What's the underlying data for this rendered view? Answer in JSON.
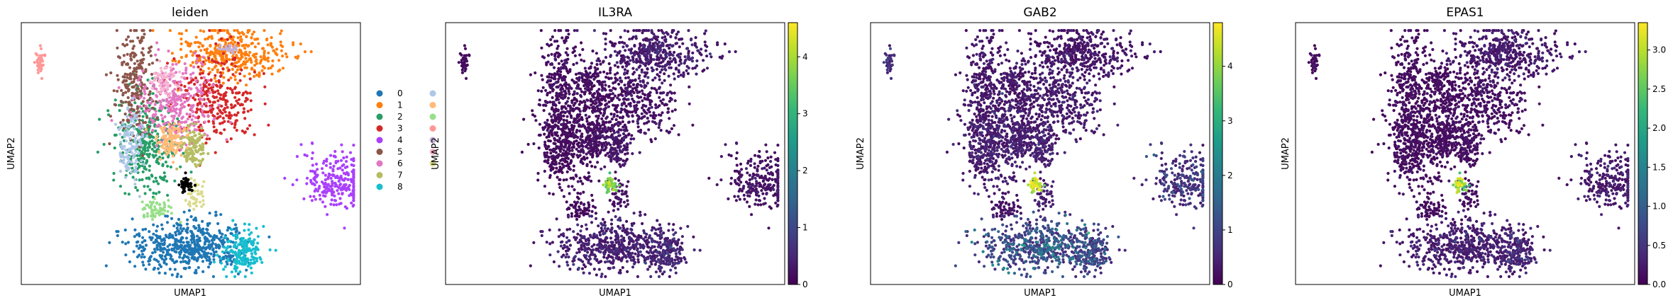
{
  "figure": {
    "xlabel": "UMAP1",
    "ylabel": "UMAP2"
  },
  "chart_data": [
    {
      "type": "scatter",
      "title": "leiden",
      "xlabel": "UMAP1",
      "ylabel": "UMAP2",
      "legend": {
        "placement": "right-outside",
        "entries": [
          {
            "label": "0",
            "color": "#1f77b4"
          },
          {
            "label": "1",
            "color": "#ff7f0e"
          },
          {
            "label": "2",
            "color": "#279e68"
          },
          {
            "label": "3",
            "color": "#d62728"
          },
          {
            "label": "4",
            "color": "#aa40fc"
          },
          {
            "label": "5",
            "color": "#8c564b"
          },
          {
            "label": "6",
            "color": "#e377c2"
          },
          {
            "label": "7",
            "color": "#b5bd61"
          },
          {
            "label": "8",
            "color": "#17becf"
          },
          {
            "label": "",
            "color": "#aec7e8"
          },
          {
            "label": "",
            "color": "#ffbb78"
          },
          {
            "label": "",
            "color": "#98df8a"
          },
          {
            "label": "",
            "color": "#ff9896"
          },
          {
            "label": "",
            "color": "#c5b0d5"
          },
          {
            "label": "",
            "color": "#f7b6d2"
          },
          {
            "label": "",
            "color": "#dbdb8d"
          }
        ]
      }
    },
    {
      "type": "scatter",
      "title": "IL3RA",
      "xlabel": "UMAP1",
      "ylabel": "UMAP2",
      "colorbar": {
        "min": 0,
        "max": 4.6,
        "ticks": [
          "0",
          "1",
          "2",
          "3",
          "4"
        ],
        "cmap": "viridis"
      }
    },
    {
      "type": "scatter",
      "title": "GAB2",
      "xlabel": "UMAP1",
      "ylabel": "UMAP2",
      "colorbar": {
        "min": 0,
        "max": 4.8,
        "ticks": [
          "0",
          "1",
          "2",
          "3",
          "4"
        ],
        "cmap": "viridis"
      }
    },
    {
      "type": "scatter",
      "title": "EPAS1",
      "xlabel": "UMAP1",
      "ylabel": "UMAP2",
      "colorbar": {
        "min": 0,
        "max": 3.35,
        "ticks": [
          "0.0",
          "0.5",
          "1.0",
          "1.5",
          "2.0",
          "2.5",
          "3.0"
        ],
        "cmap": "viridis"
      }
    }
  ]
}
